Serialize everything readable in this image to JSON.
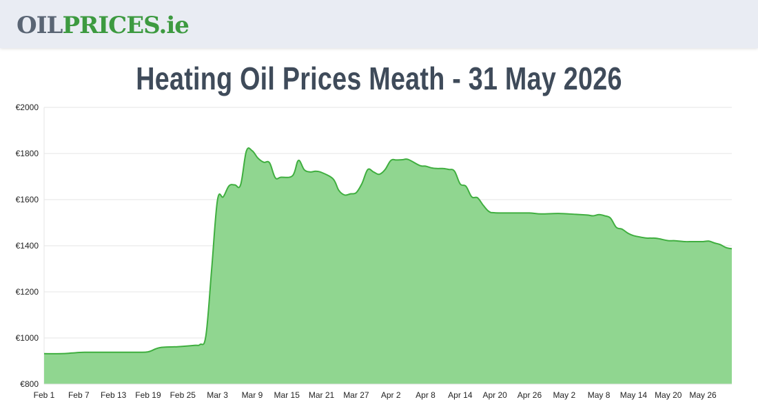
{
  "header": {
    "logo_oil": "OIL",
    "logo_prices": "PRICES",
    "logo_tld": ".ie"
  },
  "page_title": "Heating Oil Prices Meath - 31 May 2026",
  "colors": {
    "area_fill": "#90d690",
    "line": "#3fae3f",
    "grid": "#e6e6e6",
    "title": "#3f4b5a",
    "header_bg": "#e9ecf3"
  },
  "chart_data": {
    "type": "area",
    "title": "",
    "xlabel": "",
    "ylabel": "",
    "ylim": [
      800,
      2000
    ],
    "y_ticks": [
      "€800",
      "€1000",
      "€1200",
      "€1400",
      "€1600",
      "€1800",
      "€2000"
    ],
    "y_tick_values": [
      800,
      1000,
      1200,
      1400,
      1600,
      1800,
      2000
    ],
    "x_tick_labels": [
      "Feb 1",
      "Feb 7",
      "Feb 13",
      "Feb 19",
      "Feb 25",
      "Mar 3",
      "Mar 9",
      "Mar 15",
      "Mar 21",
      "Mar 27",
      "Apr 2",
      "Apr 8",
      "Apr 14",
      "Apr 20",
      "Apr 26",
      "May 2",
      "May 8",
      "May 14",
      "May 20",
      "May 26"
    ],
    "grid": true,
    "legend": "none",
    "series": [
      {
        "x": [
          "2026-02-01",
          "2026-02-04",
          "2026-02-06",
          "2026-02-08",
          "2026-02-13",
          "2026-02-17",
          "2026-02-19",
          "2026-02-21",
          "2026-02-24",
          "2026-02-27",
          "2026-02-28",
          "2026-03-01",
          "2026-03-02",
          "2026-03-03",
          "2026-03-04",
          "2026-03-05",
          "2026-03-06",
          "2026-03-07",
          "2026-03-08",
          "2026-03-09",
          "2026-03-10",
          "2026-03-11",
          "2026-03-12",
          "2026-03-13",
          "2026-03-14",
          "2026-03-16",
          "2026-03-17",
          "2026-03-18",
          "2026-03-19",
          "2026-03-20",
          "2026-03-21",
          "2026-03-23",
          "2026-03-24",
          "2026-03-25",
          "2026-03-26",
          "2026-03-27",
          "2026-03-28",
          "2026-03-29",
          "2026-03-30",
          "2026-03-31",
          "2026-04-01",
          "2026-04-02",
          "2026-04-03",
          "2026-04-04",
          "2026-04-05",
          "2026-04-07",
          "2026-04-08",
          "2026-04-09",
          "2026-04-10",
          "2026-04-11",
          "2026-04-12",
          "2026-04-13",
          "2026-04-14",
          "2026-04-15",
          "2026-04-16",
          "2026-04-17",
          "2026-04-18",
          "2026-04-19",
          "2026-04-20",
          "2026-04-23",
          "2026-04-26",
          "2026-04-28",
          "2026-05-01",
          "2026-05-04",
          "2026-05-06",
          "2026-05-07",
          "2026-05-08",
          "2026-05-09",
          "2026-05-10",
          "2026-05-11",
          "2026-05-12",
          "2026-05-13",
          "2026-05-14",
          "2026-05-16",
          "2026-05-17",
          "2026-05-18",
          "2026-05-20",
          "2026-05-21",
          "2026-05-23",
          "2026-05-24",
          "2026-05-25",
          "2026-05-26",
          "2026-05-27",
          "2026-05-28",
          "2026-05-29",
          "2026-05-30",
          "2026-05-31"
        ],
        "values": [
          932,
          932,
          935,
          938,
          938,
          938,
          940,
          958,
          962,
          968,
          972,
          1010,
          1300,
          1598,
          1612,
          1660,
          1664,
          1664,
          1810,
          1812,
          1780,
          1762,
          1760,
          1695,
          1697,
          1704,
          1770,
          1730,
          1720,
          1723,
          1718,
          1690,
          1640,
          1620,
          1625,
          1630,
          1670,
          1730,
          1720,
          1710,
          1730,
          1770,
          1772,
          1773,
          1774,
          1748,
          1745,
          1738,
          1735,
          1735,
          1731,
          1724,
          1668,
          1658,
          1612,
          1608,
          1575,
          1548,
          1543,
          1542,
          1542,
          1538,
          1540,
          1536,
          1533,
          1530,
          1535,
          1530,
          1520,
          1480,
          1472,
          1455,
          1444,
          1434,
          1433,
          1432,
          1422,
          1422,
          1418,
          1418,
          1418,
          1418,
          1420,
          1412,
          1405,
          1392,
          1387
        ]
      }
    ]
  }
}
